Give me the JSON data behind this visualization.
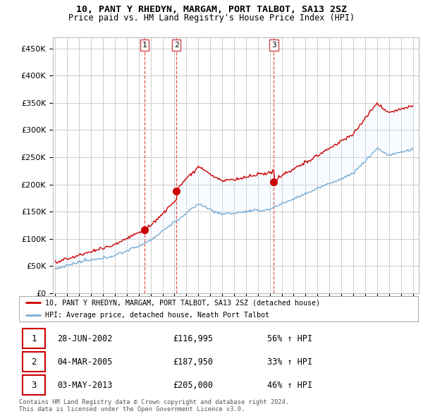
{
  "title": "10, PANT Y RHEDYN, MARGAM, PORT TALBOT, SA13 2SZ",
  "subtitle": "Price paid vs. HM Land Registry's House Price Index (HPI)",
  "ylim": [
    0,
    470000
  ],
  "yticks": [
    0,
    50000,
    100000,
    150000,
    200000,
    250000,
    300000,
    350000,
    400000,
    450000
  ],
  "ytick_labels": [
    "£0",
    "£50K",
    "£100K",
    "£150K",
    "£200K",
    "£250K",
    "£300K",
    "£350K",
    "£400K",
    "£450K"
  ],
  "hpi_color": "#7aadd4",
  "price_color": "#cc0000",
  "vline_color": "#dd4444",
  "fill_color": "#ddeeff",
  "grid_color": "#cccccc",
  "bg_color": "#ffffff",
  "legend_label_price": "10, PANT Y RHEDYN, MARGAM, PORT TALBOT, SA13 2SZ (detached house)",
  "legend_label_hpi": "HPI: Average price, detached house, Neath Port Talbot",
  "transactions": [
    {
      "num": 1,
      "date": "28-JUN-2002",
      "price": 116995,
      "change": "56% ↑ HPI"
    },
    {
      "num": 2,
      "date": "04-MAR-2005",
      "price": 187950,
      "change": "33% ↑ HPI"
    },
    {
      "num": 3,
      "date": "03-MAY-2013",
      "price": 205000,
      "change": "46% ↑ HPI"
    }
  ],
  "footer": "Contains HM Land Registry data © Crown copyright and database right 2024.\nThis data is licensed under the Open Government Licence v3.0.",
  "transaction_years": [
    2002.49,
    2005.17,
    2013.34
  ],
  "transaction_prices": [
    116995,
    187950,
    205000
  ]
}
